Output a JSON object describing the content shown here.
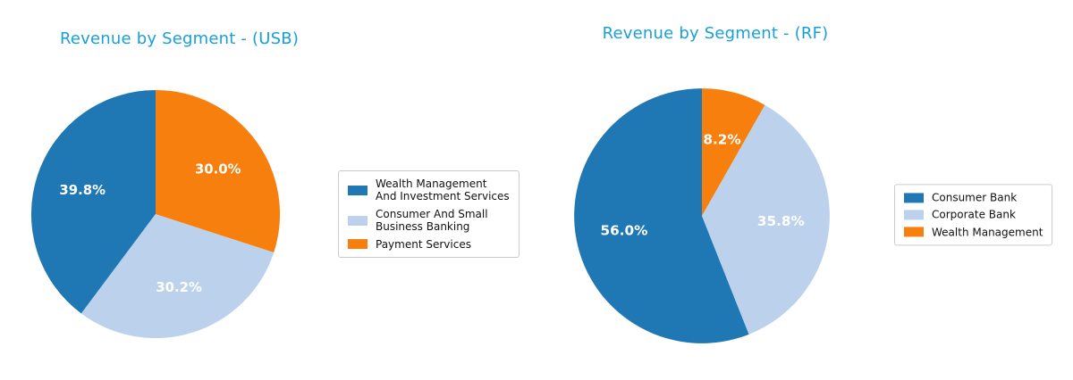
{
  "chart_data": [
    {
      "type": "pie",
      "title": "Revenue by Segment - (USB)",
      "title_color": "#189fd9",
      "labels": [
        "Wealth Management And Investment Services",
        "Consumer And Small Business Banking",
        "Payment Services"
      ],
      "values": [
        39.8,
        30.2,
        30.0
      ],
      "percent_labels": [
        "39.8%",
        "30.2%",
        "30.0%"
      ],
      "colors": [
        "#1f77b4",
        "#bcd2ec",
        "#f77f0e"
      ],
      "percent_label_color": "#ffffff",
      "start_angle": 90,
      "direction": "counterclockwise",
      "legend_position": "right"
    },
    {
      "type": "pie",
      "title": "Revenue by Segment - (RF)",
      "title_color": "#189fd9",
      "labels": [
        "Consumer Bank",
        "Corporate Bank",
        "Wealth Management"
      ],
      "values": [
        56.0,
        35.8,
        8.2
      ],
      "percent_labels": [
        "56.0%",
        "35.8%",
        "8.2%"
      ],
      "colors": [
        "#1f77b4",
        "#bcd2ec",
        "#f77f0e"
      ],
      "percent_label_color": "#ffffff",
      "start_angle": 90,
      "direction": "counterclockwise",
      "legend_position": "right"
    }
  ]
}
